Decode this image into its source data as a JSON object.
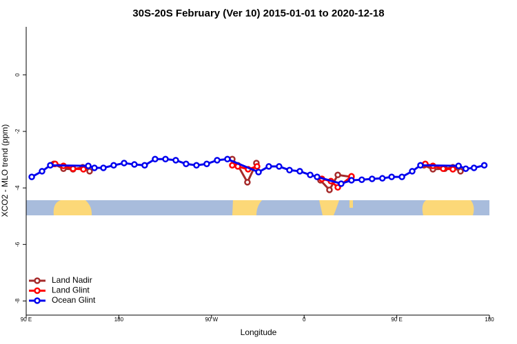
{
  "chart_data": {
    "type": "line",
    "title": "30S-20S February (Ver 10)   2015-01-01 to 2020-12-18",
    "xlabel": "Longitude",
    "ylabel": "XCO2 - MLO trend (ppm)",
    "xlim": [
      90,
      540
    ],
    "ylim": [
      -8.5,
      1.7
    ],
    "xticks": [
      {
        "value": 90,
        "label": "90 E"
      },
      {
        "value": 180,
        "label": "180"
      },
      {
        "value": 270,
        "label": "90 W"
      },
      {
        "value": 360,
        "label": "0"
      },
      {
        "value": 450,
        "label": "90 E"
      },
      {
        "value": 540,
        "label": "180"
      }
    ],
    "yticks": [
      0,
      -2,
      -4,
      -6,
      -8
    ],
    "legend": "lower left",
    "series": [
      {
        "name": "Land Nadir",
        "color": "#a52a2a",
        "x": [
          116.8,
          126.2,
          135.5,
          144.9,
          151.6,
          null,
          290.2,
          295.6,
          304.9,
          313.6,
          null,
          375.9,
          384.6,
          392.7,
          406,
          null,
          476.4,
          485.1,
          496.5,
          504.5,
          511.9
        ],
        "values": [
          -3.15,
          -3.32,
          -3.34,
          -3.27,
          -3.41,
          null,
          -2.98,
          -3.2,
          -3.8,
          -3.12,
          null,
          -3.73,
          -4.07,
          -3.54,
          -3.61,
          null,
          -3.2,
          -3.34,
          -3.32,
          -3.27,
          -3.41
        ]
      },
      {
        "name": "Land Glint",
        "color": "#ff0000",
        "x": [
          118.1,
          126.2,
          135.5,
          145.6,
          null,
          290.2,
          295.6,
          305.6,
          314.3,
          null,
          377.3,
          386,
          392.7,
          406,
          null,
          477.7,
          485.1,
          495.1,
          504.5
        ],
        "values": [
          -3.15,
          -3.22,
          -3.32,
          -3.34,
          null,
          -3.2,
          -3.24,
          -3.34,
          -3.24,
          null,
          -3.68,
          -3.76,
          -3.98,
          -3.59,
          null,
          -3.15,
          -3.22,
          -3.32,
          -3.34
        ]
      },
      {
        "name": "Ocean Glint",
        "color": "#0000ee",
        "x": [
          95.4,
          105.4,
          113.4,
          150.3,
          156.3,
          165,
          175,
          185.1,
          195.1,
          205.1,
          215.2,
          225.3,
          235.3,
          245.3,
          255.4,
          265.4,
          275.5,
          285.5,
          315.7,
          325.7,
          335.7,
          345.8,
          355.8,
          365.9,
          372.6,
          396,
          406,
          416,
          426,
          436,
          445,
          455,
          465,
          473,
          510,
          517,
          525,
          535
        ],
        "values": [
          -3.61,
          -3.41,
          -3.2,
          -3.22,
          -3.29,
          -3.29,
          -3.2,
          -3.12,
          -3.17,
          -3.2,
          -2.98,
          -2.98,
          -3.02,
          -3.15,
          -3.2,
          -3.15,
          -3.02,
          -2.98,
          -3.44,
          -3.24,
          -3.24,
          -3.37,
          -3.41,
          -3.54,
          -3.61,
          -3.85,
          -3.73,
          -3.71,
          -3.68,
          -3.66,
          -3.61,
          -3.61,
          -3.41,
          -3.2,
          -3.22,
          -3.32,
          -3.29,
          -3.2
        ]
      }
    ]
  }
}
